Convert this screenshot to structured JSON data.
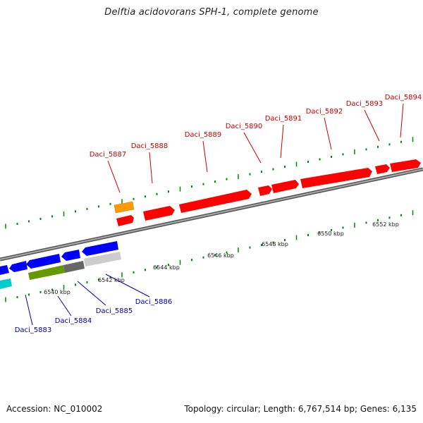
{
  "title": "Delftia acidovorans SPH-1, complete genome",
  "footer": {
    "accession": "Accession: NC_010002",
    "summary": "Topology: circular; Length: 6,767,514 bp; Genes: 6,135"
  },
  "colors": {
    "forward_gene": "#ff0000",
    "reverse_gene": "#0000ff",
    "forward_label": "#cc0000",
    "reverse_label": "#0000aa",
    "orange_gene": "#ff9900",
    "olive_gene": "#669900",
    "cyan_gene": "#00cccc",
    "gray_gene": "#666666",
    "light_gray_gene": "#cccccc",
    "backbone": "#888888",
    "tick": "#008800"
  },
  "forward_labels": [
    "Daci_5887",
    "Daci_5888",
    "Daci_5889",
    "Daci_5890",
    "Daci_5891",
    "Daci_5892",
    "Daci_5893",
    "Daci_5894"
  ],
  "reverse_labels": [
    "Daci_5883",
    "Daci_5884",
    "Daci_5885",
    "Daci_5886"
  ],
  "kbp_labels": [
    "6540 kbp",
    "6542 kbp",
    "6544 kbp",
    "6546 kbp",
    "6548 kbp",
    "6550 kbp",
    "6552 kbp"
  ]
}
